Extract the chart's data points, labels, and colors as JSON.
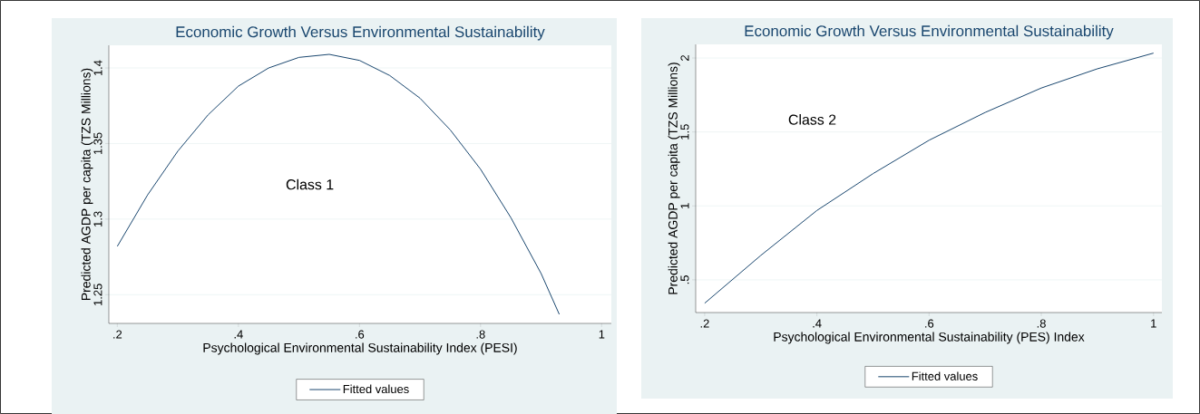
{
  "chart_data": [
    {
      "type": "line",
      "title": "Economic Growth Versus Environmental Sustainability",
      "xlabel": "Psychological Environmental Sustainability  Index (PESI)",
      "ylabel": "Predicted AGDP per capita (TZS Millions)",
      "x": [
        0.2,
        0.25,
        0.3,
        0.35,
        0.4,
        0.45,
        0.5,
        0.55,
        0.6,
        0.65,
        0.7,
        0.75,
        0.8,
        0.85,
        0.9,
        0.93
      ],
      "series": [
        {
          "name": "Fitted values",
          "color": "#1a476f",
          "values": [
            1.282,
            1.316,
            1.345,
            1.369,
            1.388,
            1.4,
            1.407,
            1.409,
            1.405,
            1.395,
            1.38,
            1.359,
            1.333,
            1.301,
            1.264,
            1.237
          ]
        }
      ],
      "xlim": [
        0.186,
        1.016
      ],
      "ylim": [
        1.231,
        1.415
      ],
      "xticks": [
        {
          "value": 0.2,
          "label": ".2"
        },
        {
          "value": 0.4,
          "label": ".4"
        },
        {
          "value": 0.6,
          "label": ".6"
        },
        {
          "value": 0.8,
          "label": ".8"
        },
        1
      ],
      "yticks": [
        1.25,
        1.3,
        1.35,
        1.4
      ],
      "grid": "y",
      "legend": "bottom",
      "annotations": [
        "Class 1"
      ]
    },
    {
      "type": "line",
      "title": "Economic Growth Versus Environmental Sustainability",
      "xlabel": "Psychological Environmental Sustainability (PES) Index",
      "ylabel": "Predicted AGDP per capita (TZS Millions)",
      "x": [
        0.2,
        0.3,
        0.4,
        0.5,
        0.6,
        0.7,
        0.8,
        0.9,
        1.0
      ],
      "series": [
        {
          "name": "Fitted values",
          "color": "#1a476f",
          "values": [
            0.342,
            0.665,
            0.969,
            1.218,
            1.444,
            1.632,
            1.797,
            1.927,
            2.033
          ]
        }
      ],
      "xlim": [
        0.184,
        1.015
      ],
      "ylim": [
        0.279,
        2.092
      ],
      "xticks": [
        {
          "value": 0.2,
          "label": ".2"
        },
        {
          "value": 0.4,
          "label": ".4"
        },
        {
          "value": 0.6,
          "label": ".6"
        },
        {
          "value": 0.8,
          "label": ".8"
        },
        1
      ],
      "yticks": [
        {
          "value": 0.5,
          "label": ".5"
        },
        1,
        1.5,
        2
      ],
      "grid": "y",
      "legend": "bottom",
      "annotations": [
        "Class 2"
      ]
    }
  ]
}
